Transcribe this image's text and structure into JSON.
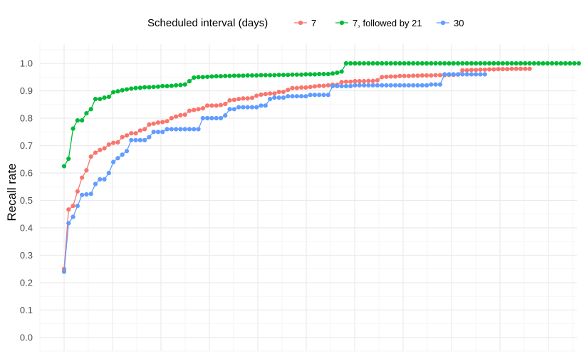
{
  "chart_data": {
    "type": "line",
    "title": "",
    "xlabel": "",
    "ylabel": "Recall rate",
    "ylim": [
      0,
      1.0
    ],
    "y_ticks": [
      "0.0",
      "0.1",
      "0.2",
      "0.3",
      "0.4",
      "0.5",
      "0.6",
      "0.7",
      "0.8",
      "0.9",
      "1.0"
    ],
    "x_tick_labels": [],
    "grid": true,
    "legend": {
      "title": "Scheduled interval (days)",
      "position": "top"
    },
    "series": [
      {
        "name": "7",
        "color": "#F8766D",
        "values": [
          0.25,
          0.467,
          0.48,
          0.533,
          0.583,
          0.61,
          0.66,
          0.674,
          0.684,
          0.69,
          0.704,
          0.71,
          0.712,
          0.731,
          0.737,
          0.745,
          0.745,
          0.755,
          0.76,
          0.777,
          0.78,
          0.784,
          0.786,
          0.789,
          0.8,
          0.806,
          0.811,
          0.813,
          0.827,
          0.83,
          0.833,
          0.836,
          0.846,
          0.846,
          0.846,
          0.848,
          0.852,
          0.865,
          0.867,
          0.87,
          0.872,
          0.872,
          0.874,
          0.882,
          0.886,
          0.888,
          0.89,
          0.89,
          0.896,
          0.896,
          0.903,
          0.91,
          0.91,
          0.912,
          0.912,
          0.914,
          0.916,
          0.918,
          0.918,
          0.92,
          0.922,
          0.922,
          0.932,
          0.933,
          0.933,
          0.935,
          0.935,
          0.935,
          0.936,
          0.936,
          0.938,
          0.95,
          0.951,
          0.952,
          0.952,
          0.954,
          0.954,
          0.954,
          0.955,
          0.955,
          0.956,
          0.956,
          0.956,
          0.957,
          0.957,
          0.957,
          0.958,
          0.958,
          0.959,
          0.975,
          0.975,
          0.976,
          0.976,
          0.977,
          0.977,
          0.978,
          0.978,
          0.979,
          0.979,
          0.979,
          0.98,
          0.98,
          0.98,
          0.98,
          0.98
        ]
      },
      {
        "name": "7, followed by 21",
        "color": "#00BA38",
        "values": [
          0.625,
          0.652,
          0.762,
          0.792,
          0.792,
          0.818,
          0.833,
          0.87,
          0.87,
          0.875,
          0.878,
          0.895,
          0.898,
          0.902,
          0.905,
          0.908,
          0.91,
          0.911,
          0.913,
          0.913,
          0.914,
          0.915,
          0.917,
          0.917,
          0.918,
          0.92,
          0.921,
          0.923,
          0.935,
          0.948,
          0.95,
          0.95,
          0.951,
          0.952,
          0.953,
          0.953,
          0.954,
          0.954,
          0.955,
          0.955,
          0.955,
          0.956,
          0.956,
          0.956,
          0.957,
          0.957,
          0.957,
          0.957,
          0.958,
          0.958,
          0.958,
          0.959,
          0.959,
          0.959,
          0.96,
          0.96,
          0.96,
          0.961,
          0.961,
          0.961,
          0.963,
          0.966,
          0.97,
          1.0,
          1.0,
          1.0,
          1.0,
          1.0,
          1.0,
          1.0,
          1.0,
          1.0,
          1.0,
          1.0,
          1.0,
          1.0,
          1.0,
          1.0,
          1.0,
          1.0,
          1.0,
          1.0,
          1.0,
          1.0,
          1.0,
          1.0,
          1.0,
          1.0,
          1.0,
          1.0,
          1.0,
          1.0,
          1.0,
          1.0,
          1.0,
          1.0,
          1.0,
          1.0,
          1.0,
          1.0,
          1.0,
          1.0,
          1.0,
          1.0,
          1.0,
          1.0,
          1.0,
          1.0,
          1.0,
          1.0,
          1.0,
          1.0,
          1.0,
          1.0,
          1.0,
          1.0
        ]
      },
      {
        "name": "30",
        "color": "#619CFF",
        "values": [
          0.24,
          0.417,
          0.44,
          0.48,
          0.52,
          0.522,
          0.524,
          0.56,
          0.577,
          0.577,
          0.6,
          0.64,
          0.654,
          0.667,
          0.68,
          0.72,
          0.72,
          0.72,
          0.72,
          0.731,
          0.75,
          0.75,
          0.75,
          0.76,
          0.76,
          0.76,
          0.76,
          0.76,
          0.76,
          0.76,
          0.76,
          0.8,
          0.8,
          0.8,
          0.8,
          0.8,
          0.81,
          0.833,
          0.833,
          0.84,
          0.84,
          0.84,
          0.84,
          0.84,
          0.846,
          0.846,
          0.87,
          0.875,
          0.875,
          0.875,
          0.88,
          0.88,
          0.88,
          0.88,
          0.88,
          0.885,
          0.885,
          0.885,
          0.885,
          0.885,
          0.917,
          0.917,
          0.917,
          0.917,
          0.917,
          0.92,
          0.92,
          0.92,
          0.92,
          0.92,
          0.92,
          0.92,
          0.92,
          0.92,
          0.92,
          0.92,
          0.92,
          0.92,
          0.92,
          0.92,
          0.92,
          0.92,
          0.923,
          0.923,
          0.923,
          0.96,
          0.96,
          0.96,
          0.96,
          0.96,
          0.96,
          0.96,
          0.96,
          0.96,
          0.96
        ]
      }
    ]
  }
}
